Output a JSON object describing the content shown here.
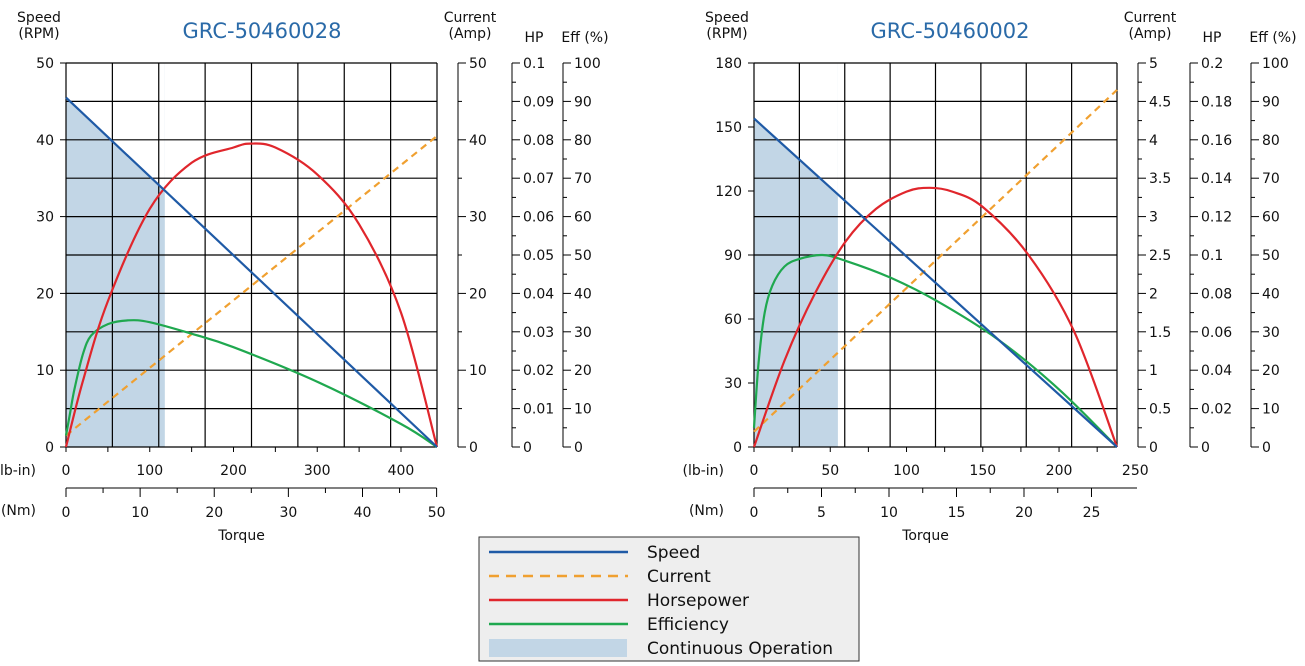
{
  "colors": {
    "speed": "#1f5aa6",
    "current": "#f0a030",
    "horsepower": "#e0262c",
    "efficiency": "#1fa84f",
    "continuous": "#c2d6e6"
  },
  "legend": {
    "items": [
      {
        "key": "speed",
        "label": "Speed",
        "style": "solid"
      },
      {
        "key": "current",
        "label": "Current",
        "style": "dashed"
      },
      {
        "key": "horsepower",
        "label": "Horsepower",
        "style": "solid"
      },
      {
        "key": "efficiency",
        "label": "Efficiency",
        "style": "solid"
      },
      {
        "key": "continuous",
        "label": "Continuous Operation",
        "style": "block"
      }
    ]
  },
  "chart_data": [
    {
      "type": "line",
      "title": "GRC-50460028",
      "xlabel": "Torque",
      "x_unit_primary": "(lb-in)",
      "x_unit_secondary": "(Nm)",
      "xlim_lbin": [
        0,
        443
      ],
      "x_ticks_lbin": [
        "0",
        "100",
        "200",
        "300",
        "400"
      ],
      "x_ticks_nm": [
        "0",
        "10",
        "20",
        "30",
        "40",
        "50"
      ],
      "speed_axis": {
        "label_line1": "Speed",
        "label_line2": "(RPM)",
        "ylim": [
          0,
          50
        ],
        "ticks": [
          "0",
          "10",
          "20",
          "30",
          "40",
          "50"
        ]
      },
      "current_axis": {
        "label_line1": "Current",
        "label_line2": "(Amp)",
        "ylim": [
          0,
          50
        ],
        "ticks": [
          "0",
          "10",
          "20",
          "30",
          "40",
          "50"
        ]
      },
      "hp_axis": {
        "label": "HP",
        "ylim": [
          0,
          0.1
        ],
        "ticks": [
          "0",
          "0.01",
          "0.02",
          "0.03",
          "0.04",
          "0.05",
          "0.06",
          "0.07",
          "0.08",
          "0.09",
          "0.1"
        ]
      },
      "eff_axis": {
        "label": "Eff (%)",
        "ylim": [
          0,
          100
        ],
        "ticks": [
          "0",
          "10",
          "20",
          "30",
          "40",
          "50",
          "60",
          "70",
          "80",
          "90",
          "100"
        ]
      },
      "continuous_until_lbin": 118,
      "series": [
        {
          "name": "Speed",
          "axis": "speed",
          "x": [
            0,
            443
          ],
          "y": [
            45.5,
            0
          ]
        },
        {
          "name": "Current",
          "axis": "current",
          "x": [
            0,
            443
          ],
          "y": [
            1.5,
            40.5
          ]
        },
        {
          "name": "Horsepower",
          "axis": "hp",
          "x": [
            0,
            20,
            50,
            100,
            150,
            200,
            220,
            250,
            300,
            350,
            400,
            443
          ],
          "y": [
            0,
            0.017,
            0.038,
            0.062,
            0.074,
            0.078,
            0.079,
            0.078,
            0.071,
            0.058,
            0.035,
            0
          ]
        },
        {
          "name": "Efficiency",
          "axis": "eff",
          "x": [
            0,
            5,
            10,
            20,
            30,
            50,
            75,
            100,
            150,
            200,
            300,
            400,
            443
          ],
          "y": [
            3,
            9,
            15,
            24,
            29,
            32,
            33,
            32.5,
            29.5,
            26,
            17,
            6,
            0
          ]
        }
      ]
    },
    {
      "type": "line",
      "title": "GRC-50460002",
      "xlabel": "Torque",
      "x_unit_primary": "(lb-in)",
      "x_unit_secondary": "(Nm)",
      "xlim_lbin": [
        0,
        238
      ],
      "x_ticks_lbin": [
        "0",
        "50",
        "100",
        "150",
        "200",
        "250"
      ],
      "x_ticks_nm": [
        "0",
        "5",
        "10",
        "15",
        "20",
        "25"
      ],
      "speed_axis": {
        "label_line1": "Speed",
        "label_line2": "(RPM)",
        "ylim": [
          0,
          180
        ],
        "ticks": [
          "0",
          "30",
          "60",
          "90",
          "120",
          "150",
          "180"
        ]
      },
      "current_axis": {
        "label_line1": "Current",
        "label_line2": "(Amp)",
        "ylim": [
          0,
          5
        ],
        "ticks": [
          "0",
          "0.5",
          "1",
          "1.5",
          "2",
          "2.5",
          "3",
          "3.5",
          "4",
          "4.5",
          "5"
        ]
      },
      "hp_axis": {
        "label": "HP",
        "ylim": [
          0,
          0.2
        ],
        "ticks": [
          "0",
          "0.02",
          "0.04",
          "0.06",
          "0.08",
          "0.1",
          "0.12",
          "0.14",
          "0.16",
          "0.18",
          "0.2"
        ]
      },
      "eff_axis": {
        "label": "Eff (%)",
        "ylim": [
          0,
          100
        ],
        "ticks": [
          "0",
          "10",
          "20",
          "30",
          "40",
          "50",
          "60",
          "70",
          "80",
          "90",
          "100"
        ]
      },
      "continuous_until_lbin": 55,
      "series": [
        {
          "name": "Speed",
          "axis": "speed",
          "x": [
            0,
            238
          ],
          "y": [
            154,
            0
          ]
        },
        {
          "name": "Current",
          "axis": "current",
          "x": [
            0,
            238
          ],
          "y": [
            0.2,
            4.65
          ]
        },
        {
          "name": "Horsepower",
          "axis": "hp",
          "x": [
            0,
            20,
            40,
            60,
            80,
            100,
            115,
            130,
            150,
            180,
            210,
            238
          ],
          "y": [
            0,
            0.045,
            0.08,
            0.107,
            0.124,
            0.133,
            0.135,
            0.133,
            0.125,
            0.1,
            0.06,
            0
          ]
        },
        {
          "name": "Efficiency",
          "axis": "eff",
          "x": [
            0,
            3,
            7,
            12,
            20,
            30,
            45,
            60,
            90,
            120,
            160,
            200,
            238
          ],
          "y": [
            5,
            22,
            35,
            42,
            47,
            49,
            50,
            48.5,
            44,
            38,
            28,
            15,
            0
          ]
        }
      ]
    }
  ]
}
